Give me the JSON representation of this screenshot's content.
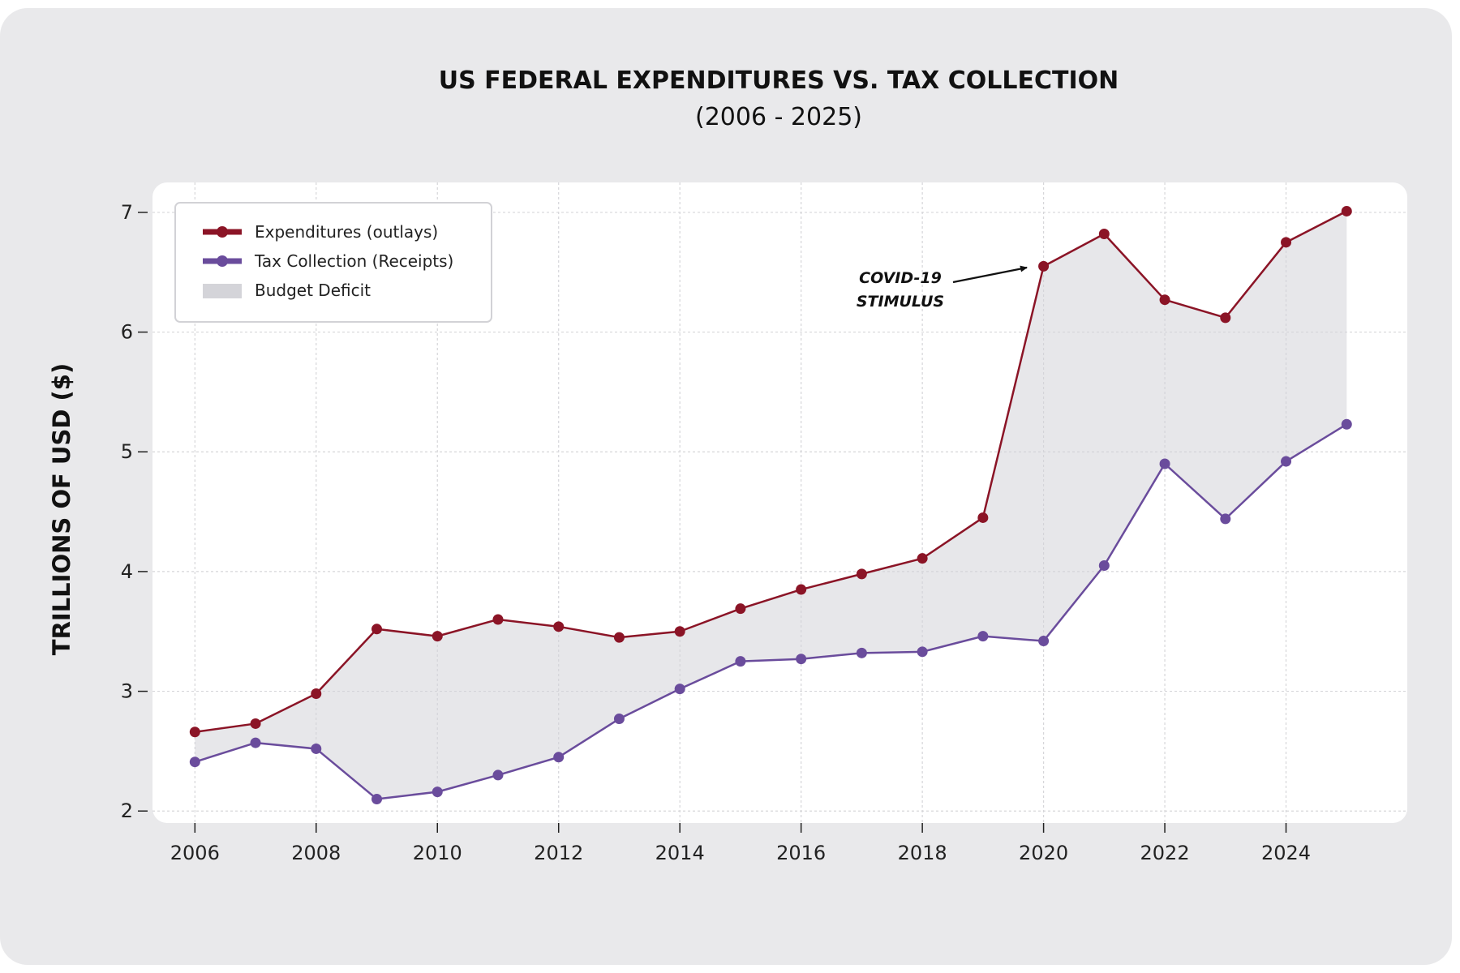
{
  "chart_data": {
    "type": "line",
    "title": "US FEDERAL EXPENDITURES VS. TAX COLLECTION",
    "subtitle": "(2006 - 2025)",
    "xlabel": "",
    "ylabel": "TRILLIONS OF USD ($)",
    "x": [
      2006,
      2007,
      2008,
      2009,
      2010,
      2011,
      2012,
      2013,
      2014,
      2015,
      2016,
      2017,
      2018,
      2019,
      2020,
      2021,
      2022,
      2023,
      2024,
      2025
    ],
    "xticks": [
      "2006",
      "2008",
      "2010",
      "2012",
      "2014",
      "2016",
      "2018",
      "2020",
      "2022",
      "2024"
    ],
    "xtick_values": [
      2006,
      2008,
      2010,
      2012,
      2014,
      2016,
      2018,
      2020,
      2022,
      2024
    ],
    "yticks": [
      "2",
      "3",
      "4",
      "5",
      "6",
      "7"
    ],
    "ytick_values": [
      2,
      3,
      4,
      5,
      6,
      7
    ],
    "xlim": [
      2005.3,
      2026.0
    ],
    "ylim": [
      1.9,
      7.25
    ],
    "grid": true,
    "legend_position": "top-left",
    "series": [
      {
        "name": "Expenditures (outlays)",
        "color": "#8b1426",
        "values": [
          2.66,
          2.73,
          2.98,
          3.52,
          3.46,
          3.6,
          3.54,
          3.45,
          3.5,
          3.69,
          3.85,
          3.98,
          4.11,
          4.45,
          6.55,
          6.82,
          6.27,
          6.12,
          6.75,
          7.01
        ]
      },
      {
        "name": "Tax Collection (Receipts)",
        "color": "#6a4c9c",
        "values": [
          2.41,
          2.57,
          2.52,
          2.1,
          2.16,
          2.3,
          2.45,
          2.77,
          3.02,
          3.25,
          3.27,
          3.32,
          3.33,
          3.46,
          3.42,
          4.05,
          4.9,
          4.44,
          4.92,
          5.23
        ]
      }
    ],
    "fill_between": {
      "name": "Budget Deficit",
      "color": "#d4d4d9"
    },
    "annotations": [
      {
        "text_lines": [
          "COVID-19",
          "STIMULUS"
        ],
        "points_to_x": 2020,
        "points_to_y": 6.55
      }
    ]
  }
}
